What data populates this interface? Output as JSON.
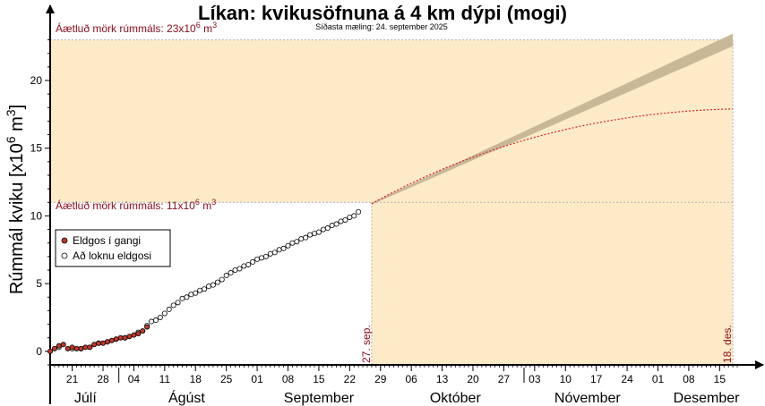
{
  "chart_data": {
    "type": "scatter",
    "title": "Líkan: kvikusöfnuna á 4 km dýpi (mogi)",
    "subtitle": "Síðasta mæling: 24. september 2025",
    "ylabel": "Rúmmál kviku [x10",
    "ylabel_sup": "6",
    "ylabel_tail": " m",
    "ylabel_sup2": "3",
    "ylabel_end": "]",
    "ylim": [
      -1,
      23.5
    ],
    "yticks": [
      0,
      5,
      10,
      15,
      20
    ],
    "xlim": [
      "2025-07-16",
      "2025-12-19"
    ],
    "xtick_labels": [
      "21",
      "28",
      "04",
      "11",
      "18",
      "25",
      "01",
      "08",
      "15",
      "22",
      "29",
      "06",
      "13",
      "20",
      "27",
      "03",
      "10",
      "17",
      "24",
      "01",
      "08",
      "15"
    ],
    "xtick_dates": [
      "2025-07-21",
      "2025-07-28",
      "2025-08-04",
      "2025-08-11",
      "2025-08-18",
      "2025-08-25",
      "2025-09-01",
      "2025-09-08",
      "2025-09-15",
      "2025-09-22",
      "2025-09-29",
      "2025-10-06",
      "2025-10-13",
      "2025-10-20",
      "2025-10-27",
      "2025-11-03",
      "2025-11-10",
      "2025-11-17",
      "2025-11-24",
      "2025-12-01",
      "2025-12-08",
      "2025-12-15"
    ],
    "months": [
      {
        "label": "Júlí",
        "center": "2025-07-24"
      },
      {
        "label": "Ágúst",
        "center": "2025-08-16"
      },
      {
        "label": "September",
        "center": "2025-09-15"
      },
      {
        "label": "Október",
        "center": "2025-10-16"
      },
      {
        "label": "Nóvember",
        "center": "2025-11-15"
      },
      {
        "label": "Desember",
        "center": "2025-12-12"
      }
    ],
    "month_separators": [
      "2025-08-01",
      "2025-11-01"
    ],
    "threshold_high": {
      "value": 23,
      "label": "Áætluð mörk rúmmáls: 23x10",
      "label_sup": "6",
      "label_unit": " m",
      "label_sup2": "3"
    },
    "threshold_low": {
      "value": 11,
      "label": "Áætluð mörk rúmmáls: 11x10",
      "label_sup": "6",
      "label_unit": " m",
      "label_sup2": "3"
    },
    "window_start": {
      "date": "2025-09-27",
      "label": "27. sep."
    },
    "window_end": {
      "date": "2025-12-18",
      "label": "18. des."
    },
    "colors": {
      "window": "#fdebc8",
      "band": "#c8b898",
      "trend": "#dd2020",
      "red_text": "#8b0a1a",
      "eruption_point": "#c0392b",
      "grid": "#b0b0b0"
    },
    "legend": {
      "position": "left",
      "items": [
        "Eldgos í gangi",
        "Að loknu eldgosi"
      ]
    },
    "forecast_linear": {
      "start": [
        "2025-09-27",
        10.9
      ],
      "end": [
        "2025-12-18",
        23
      ]
    },
    "forecast_decay": {
      "start": [
        "2025-09-27",
        10.9
      ],
      "end": [
        "2025-12-18",
        17.9
      ]
    },
    "series": [
      {
        "name": "Eldgos í gangi",
        "x": [
          "2025-07-16",
          "2025-07-17",
          "2025-07-18",
          "2025-07-19",
          "2025-07-20",
          "2025-07-21",
          "2025-07-22",
          "2025-07-23",
          "2025-07-24",
          "2025-07-25",
          "2025-07-26",
          "2025-07-27",
          "2025-07-28",
          "2025-07-29",
          "2025-07-30",
          "2025-07-31",
          "2025-08-01",
          "2025-08-02",
          "2025-08-03",
          "2025-08-04",
          "2025-08-05",
          "2025-08-06",
          "2025-08-07"
        ],
        "y": [
          0.0,
          0.2,
          0.4,
          0.5,
          0.2,
          0.3,
          0.2,
          0.2,
          0.3,
          0.3,
          0.5,
          0.6,
          0.6,
          0.7,
          0.8,
          0.9,
          1.0,
          1.0,
          1.1,
          1.2,
          1.3,
          1.5,
          1.8
        ]
      },
      {
        "name": "Að loknu eldgosi",
        "x": [
          "2025-07-18",
          "2025-07-21",
          "2025-07-23",
          "2025-07-25",
          "2025-07-27",
          "2025-07-29",
          "2025-07-31",
          "2025-08-02",
          "2025-08-05",
          "2025-08-07",
          "2025-08-08",
          "2025-08-09",
          "2025-08-10",
          "2025-08-11",
          "2025-08-12",
          "2025-08-13",
          "2025-08-14",
          "2025-08-15",
          "2025-08-16",
          "2025-08-17",
          "2025-08-18",
          "2025-08-19",
          "2025-08-20",
          "2025-08-21",
          "2025-08-22",
          "2025-08-23",
          "2025-08-24",
          "2025-08-25",
          "2025-08-26",
          "2025-08-27",
          "2025-08-28",
          "2025-08-29",
          "2025-08-30",
          "2025-08-31",
          "2025-09-01",
          "2025-09-02",
          "2025-09-03",
          "2025-09-04",
          "2025-09-05",
          "2025-09-06",
          "2025-09-07",
          "2025-09-08",
          "2025-09-09",
          "2025-09-10",
          "2025-09-11",
          "2025-09-12",
          "2025-09-13",
          "2025-09-14",
          "2025-09-15",
          "2025-09-16",
          "2025-09-17",
          "2025-09-18",
          "2025-09-19",
          "2025-09-20",
          "2025-09-21",
          "2025-09-22",
          "2025-09-23",
          "2025-09-24"
        ],
        "y": [
          0.3,
          0.2,
          0.2,
          0.3,
          0.6,
          0.7,
          0.9,
          1.0,
          1.4,
          1.9,
          2.2,
          2.3,
          2.5,
          2.8,
          3.1,
          3.4,
          3.6,
          3.9,
          4.0,
          4.2,
          4.3,
          4.5,
          4.6,
          4.8,
          4.9,
          5.1,
          5.3,
          5.6,
          5.8,
          6.0,
          6.1,
          6.3,
          6.4,
          6.6,
          6.8,
          6.9,
          7.0,
          7.2,
          7.3,
          7.5,
          7.6,
          7.8,
          8.0,
          8.1,
          8.3,
          8.4,
          8.6,
          8.7,
          8.8,
          9.0,
          9.1,
          9.3,
          9.4,
          9.6,
          9.7,
          9.9,
          10.0,
          10.3
        ]
      }
    ]
  }
}
